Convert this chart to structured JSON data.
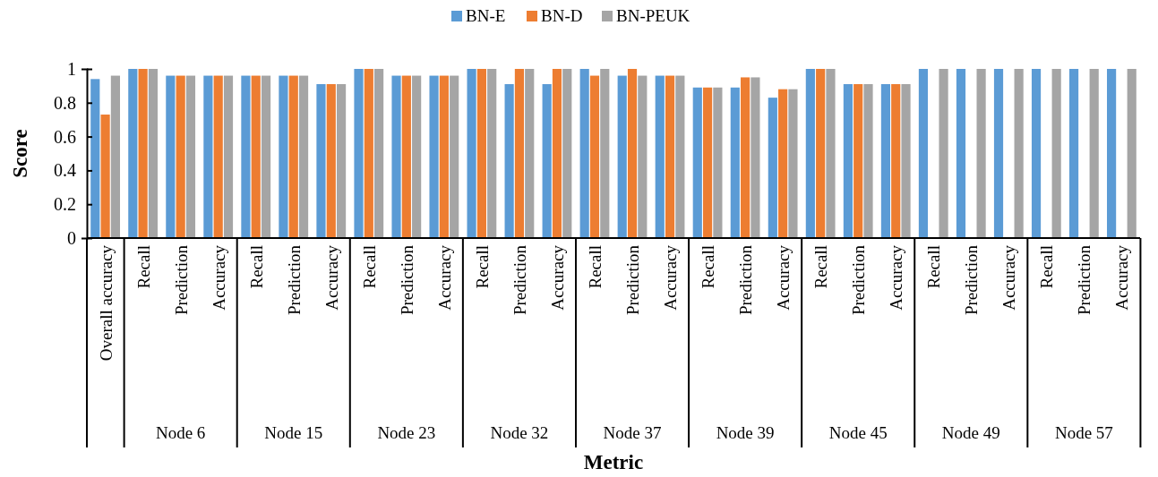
{
  "chart_data": {
    "type": "bar",
    "xlabel": "Metric",
    "ylabel": "Score",
    "categories": [
      "Overall accuracy",
      "Recall",
      "Prediction",
      "Accuracy",
      "Recall",
      "Prediction",
      "Accuracy",
      "Recall",
      "Prediction",
      "Accuracy",
      "Recall",
      "Prediction",
      "Accuracy",
      "Recall",
      "Prediction",
      "Accuracy",
      "Recall",
      "Prediction",
      "Accuracy",
      "Recall",
      "Prediction",
      "Accuracy",
      "Recall",
      "Prediction",
      "Accuracy",
      "Recall",
      "Prediction",
      "Accuracy"
    ],
    "series": [
      {
        "name": "BN-E",
        "color": "#5b9bd5",
        "values": [
          0.94,
          1,
          0.96,
          0.96,
          0.96,
          0.96,
          0.91,
          1,
          0.96,
          0.96,
          1,
          0.91,
          0.91,
          1,
          0.96,
          0.96,
          0.89,
          0.89,
          0.83,
          1,
          0.91,
          0.91,
          1,
          1,
          1,
          1,
          1,
          1
        ]
      },
      {
        "name": "BN-D",
        "color": "#ed7d31",
        "values": [
          0.73,
          1,
          0.96,
          0.96,
          0.96,
          0.96,
          0.91,
          1,
          0.96,
          0.96,
          1,
          1,
          1,
          0.96,
          1,
          0.96,
          0.89,
          0.95,
          0.88,
          1,
          0.91,
          0.91,
          null,
          null,
          null,
          null,
          null,
          null
        ]
      },
      {
        "name": "BN-PEUK",
        "color": "#a5a5a5",
        "values": [
          0.96,
          1,
          0.96,
          0.96,
          0.96,
          0.96,
          0.91,
          1,
          0.96,
          0.96,
          1,
          1,
          1,
          1,
          0.96,
          0.96,
          0.89,
          0.95,
          0.88,
          1,
          0.91,
          0.91,
          1,
          1,
          1,
          1,
          1,
          1
        ]
      }
    ],
    "ylim": [
      0,
      1
    ],
    "yticks": [
      0,
      {
        "value": 0.2,
        "label": "0.2"
      },
      {
        "value": 0.4,
        "label": "0.4"
      },
      {
        "value": 0.6,
        "label": "0.6"
      },
      {
        "value": 0.8,
        "label": "0.8"
      },
      1
    ],
    "legend": "top",
    "annotations": [
      "Node 6",
      "Node 15",
      "Node 23",
      "Node 32",
      "Node 37",
      "Node 39",
      "Node 45",
      "Node 49",
      "Node 57"
    ]
  }
}
